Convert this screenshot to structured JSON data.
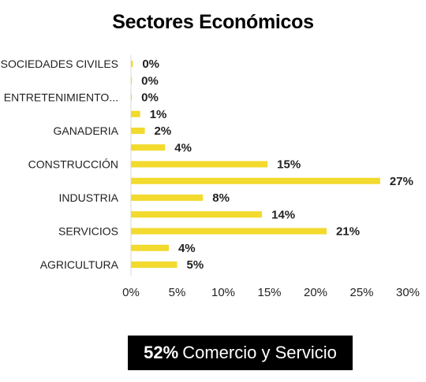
{
  "chart_data": {
    "type": "bar",
    "orientation": "horizontal",
    "title": "Sectores Económicos",
    "categories": [
      "SOCIEDADES CIVILES",
      "",
      "ENTRETENIMIENTO...",
      "",
      "GANADERIA",
      "",
      "CONSTRUCCIÓN",
      "",
      "INDUSTRIA",
      "",
      "SERVICIOS",
      "",
      "AGRICULTURA"
    ],
    "values": [
      0.2,
      0.1,
      0.1,
      1,
      1.5,
      3.7,
      14.8,
      27,
      7.8,
      14.2,
      21.2,
      4.1,
      5
    ],
    "data_labels": [
      "0%",
      "0%",
      "0%",
      "1%",
      "2%",
      "4%",
      "15%",
      "27%",
      "8%",
      "14%",
      "21%",
      "4%",
      "5%"
    ],
    "xlim": [
      0,
      30
    ],
    "xticks": [
      "0%",
      "5%",
      "10%",
      "15%",
      "20%",
      "25%",
      "30%"
    ],
    "xlabel": "",
    "ylabel": "",
    "grid": false,
    "legend": "none",
    "bar_color": "#F2DA2E"
  },
  "footer": {
    "highlight": "52%",
    "text": "Comercio y Servicio"
  }
}
